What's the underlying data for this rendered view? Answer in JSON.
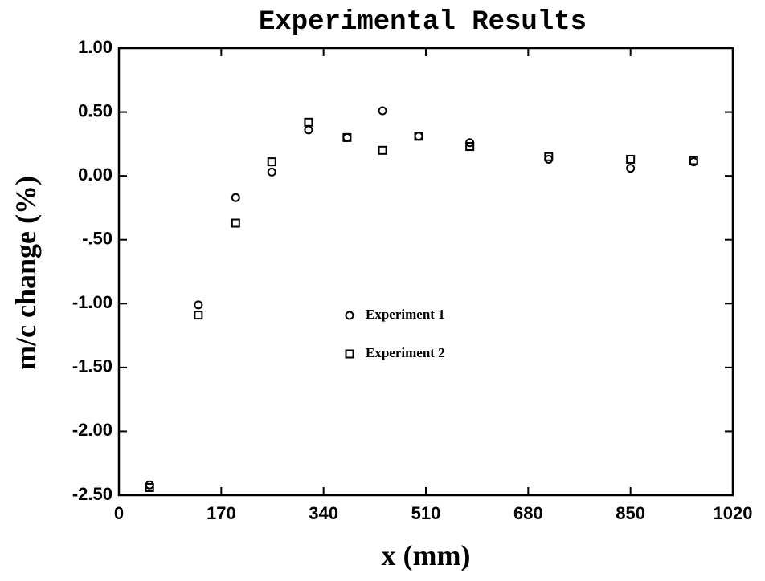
{
  "chart_data": {
    "type": "scatter",
    "title": "Experimental Results",
    "x_label": "x (mm)",
    "y_label": "m/c change (%)",
    "xlim": [
      0,
      1020
    ],
    "xticks": [
      0,
      170,
      340,
      510,
      680,
      850,
      1020
    ],
    "ylim": [
      -2.5,
      1.0
    ],
    "yticks": [
      {
        "value": 1.0,
        "label": "1.00"
      },
      {
        "value": 0.5,
        "label": "0.50"
      },
      {
        "value": 0.0,
        "label": "0.00"
      },
      {
        "value": -0.5,
        "label": "-.50"
      },
      {
        "value": -1.0,
        "label": "-1.00"
      },
      {
        "value": -1.5,
        "label": "-1.50"
      },
      {
        "value": -2.0,
        "label": "-2.00"
      },
      {
        "value": -2.5,
        "label": "-2.50"
      }
    ],
    "legend": "center",
    "series": [
      {
        "name": "Experiment 1",
        "marker": "circle",
        "color": "#000000",
        "x": [
          51,
          132,
          194,
          254,
          315,
          379,
          438,
          498,
          583,
          714,
          850,
          955
        ],
        "values": [
          -2.42,
          -1.01,
          -0.17,
          0.03,
          0.36,
          0.3,
          0.51,
          0.31,
          0.26,
          0.13,
          0.06,
          0.11
        ]
      },
      {
        "name": "Experiment 2",
        "marker": "square",
        "color": "#000000",
        "x": [
          51,
          132,
          194,
          254,
          315,
          379,
          438,
          498,
          583,
          714,
          850,
          955
        ],
        "values": [
          -2.44,
          -1.09,
          -0.37,
          0.11,
          0.42,
          0.3,
          0.2,
          0.31,
          0.23,
          0.15,
          0.13,
          0.12
        ]
      }
    ]
  }
}
